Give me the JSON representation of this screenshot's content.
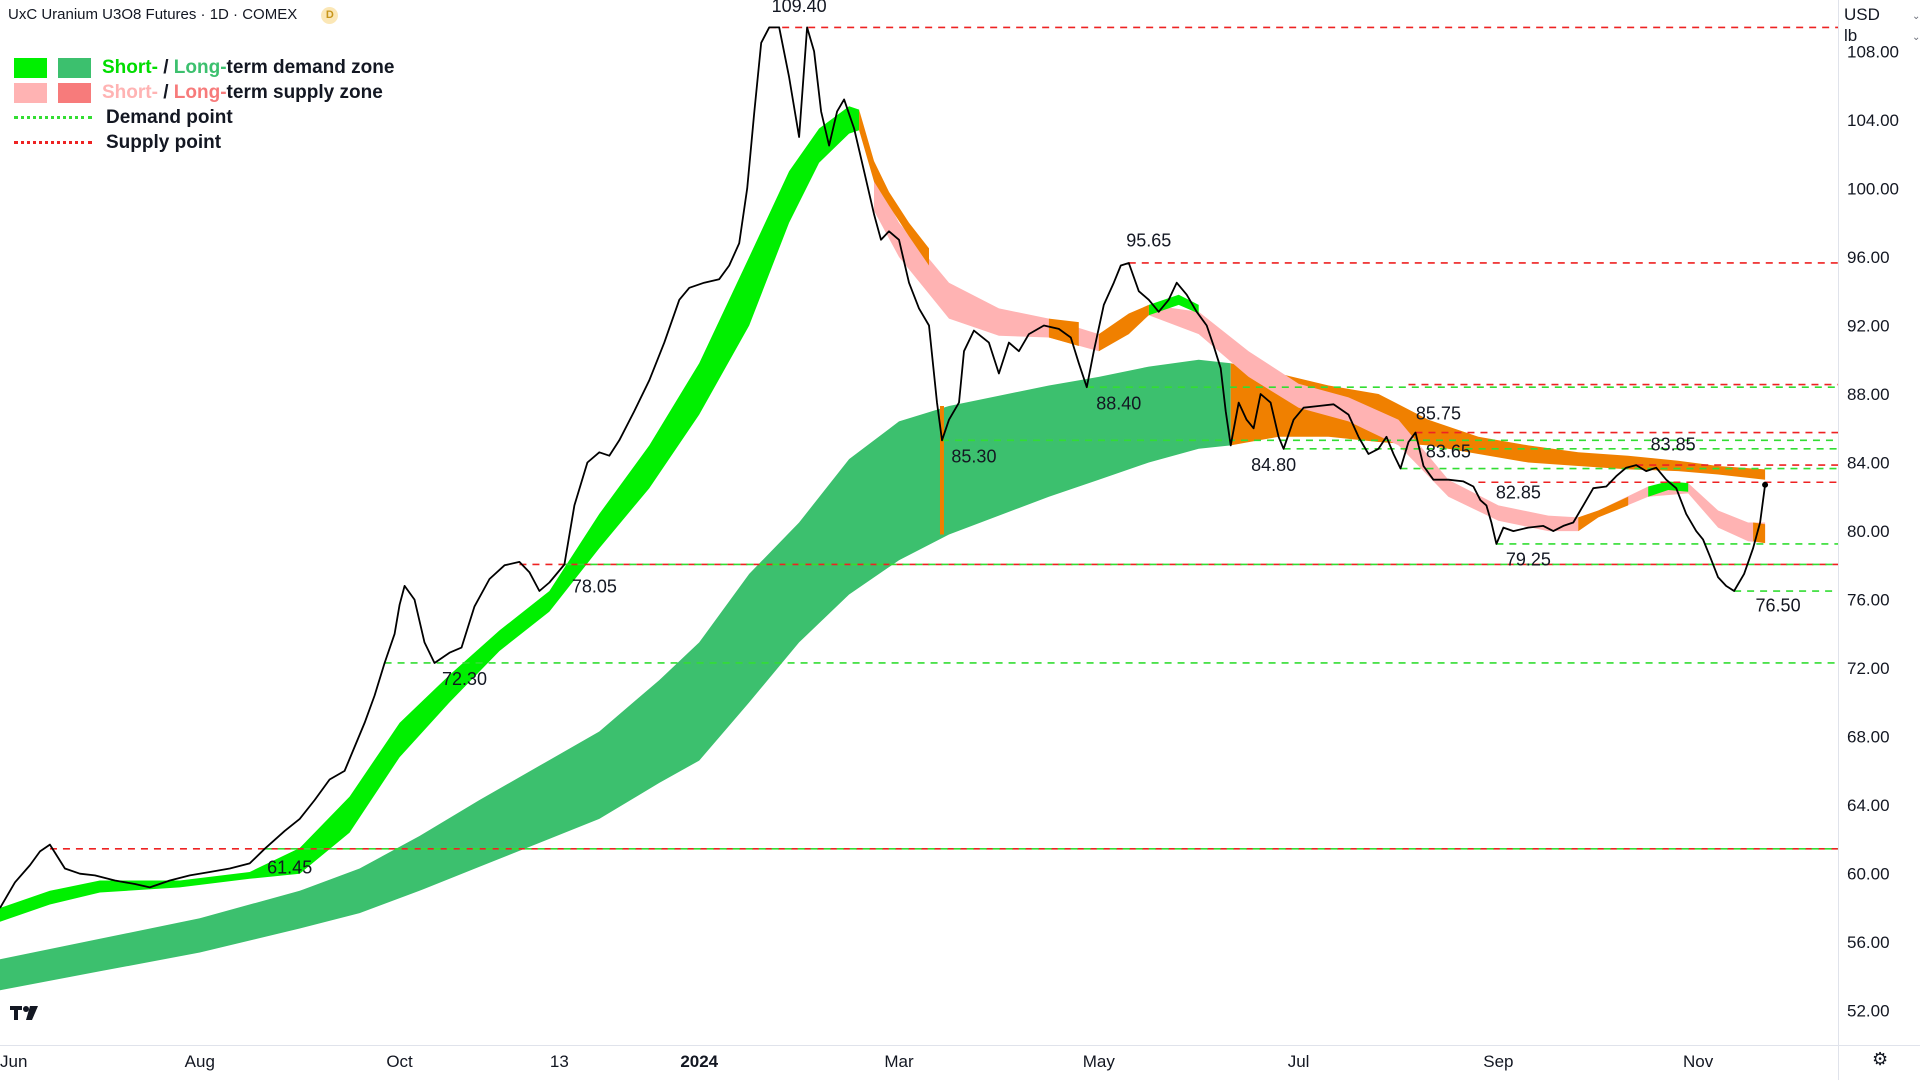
{
  "header": {
    "title": "UxC Uranium U3O8 Futures · 1D · COMEX",
    "badge": "D",
    "currency": "USD",
    "unit": "lb"
  },
  "legend": {
    "demand_zone": {
      "short": "Short-",
      "sep": " / ",
      "long": "Long-",
      "rest": "term demand zone"
    },
    "supply_zone": {
      "short": "Short-",
      "sep": " / ",
      "long": "Long-",
      "rest": "term supply zone"
    },
    "demand_point": "Demand point",
    "supply_point": "Supply point"
  },
  "colors": {
    "short_demand": "#00f000",
    "long_demand": "#3cc06e",
    "short_supply": "#ffb3b3",
    "long_supply": "#f77b7b",
    "overlap": "#f08000",
    "demand_point": "#33dd33",
    "supply_point": "#ee2222",
    "price_line": "#000000",
    "demand_text_short": "#00dd00",
    "demand_text_long": "#3cc06e",
    "supply_text_short": "#ffb3b3",
    "supply_text_long": "#f77b7b"
  },
  "icons": {
    "logo": "tradingview-logo-icon",
    "settings": "settings-icon"
  },
  "chart_data": {
    "type": "line",
    "title": "UxC Uranium U3O8 Futures",
    "interval": "1D",
    "exchange": "COMEX",
    "ylabel": "USD / lb",
    "ylim": [
      50.0,
      111.0
    ],
    "y_ticks": [
      "108.00",
      "104.00",
      "100.00",
      "96.00",
      "92.00",
      "88.00",
      "84.00",
      "80.00",
      "76.00",
      "72.00",
      "68.00",
      "64.00",
      "60.00",
      "56.00",
      "52.00"
    ],
    "x_ticks": [
      "Jun",
      "Aug",
      "Oct",
      "13",
      "2024",
      "Mar",
      "May",
      "Jul",
      "Sep",
      "Nov"
    ],
    "x_tick_months": [
      0,
      2,
      4,
      5.6,
      7,
      9,
      11,
      13,
      15,
      17
    ],
    "xlim": [
      0,
      18.4
    ],
    "price": [
      [
        0.0,
        58.0
      ],
      [
        0.15,
        59.5
      ],
      [
        0.3,
        60.5
      ],
      [
        0.4,
        61.3
      ],
      [
        0.5,
        61.7
      ],
      [
        0.65,
        60.3
      ],
      [
        0.8,
        60.0
      ],
      [
        0.95,
        59.9
      ],
      [
        1.15,
        59.6
      ],
      [
        1.35,
        59.4
      ],
      [
        1.5,
        59.2
      ],
      [
        1.7,
        59.6
      ],
      [
        1.9,
        59.9
      ],
      [
        2.1,
        60.1
      ],
      [
        2.3,
        60.3
      ],
      [
        2.5,
        60.6
      ],
      [
        2.65,
        61.45
      ],
      [
        2.85,
        62.5
      ],
      [
        3.0,
        63.2
      ],
      [
        3.15,
        64.3
      ],
      [
        3.3,
        65.5
      ],
      [
        3.45,
        66.0
      ],
      [
        3.55,
        67.4
      ],
      [
        3.65,
        68.8
      ],
      [
        3.75,
        70.4
      ],
      [
        3.85,
        72.3
      ],
      [
        3.95,
        74.0
      ],
      [
        4.0,
        75.7
      ],
      [
        4.05,
        76.8
      ],
      [
        4.15,
        76.0
      ],
      [
        4.25,
        73.5
      ],
      [
        4.35,
        72.3
      ],
      [
        4.5,
        72.9
      ],
      [
        4.62,
        73.2
      ],
      [
        4.75,
        75.6
      ],
      [
        4.9,
        77.2
      ],
      [
        5.05,
        78.0
      ],
      [
        5.2,
        78.2
      ],
      [
        5.3,
        77.6
      ],
      [
        5.4,
        76.5
      ],
      [
        5.5,
        77.0
      ],
      [
        5.65,
        78.05
      ],
      [
        5.75,
        81.5
      ],
      [
        5.88,
        84.0
      ],
      [
        6.0,
        84.6
      ],
      [
        6.1,
        84.4
      ],
      [
        6.2,
        85.3
      ],
      [
        6.35,
        87.0
      ],
      [
        6.5,
        88.8
      ],
      [
        6.65,
        91.0
      ],
      [
        6.8,
        93.5
      ],
      [
        6.9,
        94.2
      ],
      [
        7.05,
        94.5
      ],
      [
        7.2,
        94.7
      ],
      [
        7.3,
        95.5
      ],
      [
        7.4,
        96.8
      ],
      [
        7.48,
        100.0
      ],
      [
        7.55,
        104.4
      ],
      [
        7.62,
        108.5
      ],
      [
        7.7,
        109.4
      ],
      [
        7.8,
        109.4
      ],
      [
        7.9,
        106.5
      ],
      [
        8.0,
        103.0
      ],
      [
        8.08,
        109.4
      ],
      [
        8.15,
        108.0
      ],
      [
        8.22,
        104.5
      ],
      [
        8.3,
        102.5
      ],
      [
        8.38,
        104.5
      ],
      [
        8.45,
        105.2
      ],
      [
        8.55,
        103.5
      ],
      [
        8.65,
        101.0
      ],
      [
        8.75,
        98.5
      ],
      [
        8.82,
        97.0
      ],
      [
        8.9,
        97.5
      ],
      [
        9.0,
        97.0
      ],
      [
        9.1,
        94.5
      ],
      [
        9.2,
        93.0
      ],
      [
        9.3,
        92.0
      ],
      [
        9.38,
        87.5
      ],
      [
        9.43,
        85.3
      ],
      [
        9.5,
        86.5
      ],
      [
        9.6,
        87.5
      ],
      [
        9.65,
        90.5
      ],
      [
        9.75,
        91.7
      ],
      [
        9.9,
        91.0
      ],
      [
        10.0,
        89.2
      ],
      [
        10.1,
        91.0
      ],
      [
        10.2,
        90.5
      ],
      [
        10.3,
        91.5
      ],
      [
        10.45,
        92.0
      ],
      [
        10.6,
        91.8
      ],
      [
        10.72,
        91.3
      ],
      [
        10.8,
        89.8
      ],
      [
        10.88,
        88.4
      ],
      [
        10.95,
        90.5
      ],
      [
        11.05,
        93.2
      ],
      [
        11.15,
        94.5
      ],
      [
        11.22,
        95.5
      ],
      [
        11.3,
        95.65
      ],
      [
        11.4,
        94.0
      ],
      [
        11.5,
        93.5
      ],
      [
        11.6,
        92.8
      ],
      [
        11.7,
        93.5
      ],
      [
        11.78,
        94.5
      ],
      [
        11.88,
        93.8
      ],
      [
        11.98,
        92.8
      ],
      [
        12.08,
        92.0
      ],
      [
        12.15,
        90.8
      ],
      [
        12.22,
        89.5
      ],
      [
        12.27,
        87.0
      ],
      [
        12.32,
        85.0
      ],
      [
        12.4,
        87.5
      ],
      [
        12.48,
        86.5
      ],
      [
        12.55,
        86.0
      ],
      [
        12.62,
        88.0
      ],
      [
        12.72,
        87.5
      ],
      [
        12.8,
        85.5
      ],
      [
        12.85,
        84.8
      ],
      [
        12.95,
        86.5
      ],
      [
        13.05,
        87.2
      ],
      [
        13.2,
        87.3
      ],
      [
        13.35,
        87.4
      ],
      [
        13.5,
        86.8
      ],
      [
        13.6,
        85.5
      ],
      [
        13.7,
        84.5
      ],
      [
        13.8,
        84.8
      ],
      [
        13.88,
        85.5
      ],
      [
        13.95,
        84.5
      ],
      [
        14.02,
        83.65
      ],
      [
        14.1,
        85.2
      ],
      [
        14.17,
        85.75
      ],
      [
        14.25,
        83.8
      ],
      [
        14.35,
        83.0
      ],
      [
        14.5,
        83.0
      ],
      [
        14.65,
        82.9
      ],
      [
        14.75,
        82.6
      ],
      [
        14.82,
        81.8
      ],
      [
        14.88,
        81.5
      ],
      [
        14.93,
        80.5
      ],
      [
        14.98,
        79.25
      ],
      [
        15.05,
        80.2
      ],
      [
        15.15,
        80.0
      ],
      [
        15.3,
        80.2
      ],
      [
        15.45,
        80.3
      ],
      [
        15.55,
        80.0
      ],
      [
        15.65,
        80.3
      ],
      [
        15.75,
        80.5
      ],
      [
        15.85,
        81.5
      ],
      [
        15.95,
        82.5
      ],
      [
        16.08,
        82.6
      ],
      [
        16.18,
        83.2
      ],
      [
        16.28,
        83.7
      ],
      [
        16.38,
        83.85
      ],
      [
        16.48,
        83.5
      ],
      [
        16.58,
        83.7
      ],
      [
        16.68,
        83.0
      ],
      [
        16.78,
        82.5
      ],
      [
        16.88,
        81.0
      ],
      [
        16.98,
        80.0
      ],
      [
        17.05,
        79.5
      ],
      [
        17.12,
        78.5
      ],
      [
        17.2,
        77.3
      ],
      [
        17.28,
        76.8
      ],
      [
        17.36,
        76.5
      ],
      [
        17.46,
        77.5
      ],
      [
        17.55,
        79.0
      ],
      [
        17.62,
        80.5
      ],
      [
        17.67,
        82.7
      ]
    ],
    "long_demand_zone": [
      [
        0.0,
        55.0,
        53.2
      ],
      [
        1.0,
        56.2,
        54.3
      ],
      [
        2.0,
        57.4,
        55.4
      ],
      [
        3.0,
        59.0,
        56.8
      ],
      [
        3.6,
        60.3,
        57.7
      ],
      [
        4.2,
        62.2,
        59.0
      ],
      [
        4.8,
        64.3,
        60.4
      ],
      [
        5.4,
        66.3,
        61.8
      ],
      [
        6.0,
        68.3,
        63.2
      ],
      [
        6.6,
        71.3,
        65.3
      ],
      [
        7.0,
        73.5,
        66.6
      ],
      [
        7.5,
        77.5,
        70.0
      ],
      [
        8.0,
        80.5,
        73.5
      ],
      [
        8.5,
        84.2,
        76.3
      ],
      [
        9.0,
        86.4,
        78.3
      ],
      [
        9.5,
        87.3,
        79.8
      ],
      [
        10.0,
        87.9,
        80.9
      ],
      [
        10.5,
        88.5,
        82.0
      ],
      [
        11.0,
        89.0,
        83.0
      ],
      [
        11.5,
        89.6,
        84.0
      ],
      [
        12.0,
        90.0,
        84.8
      ],
      [
        12.32,
        89.8,
        85.0
      ]
    ],
    "short_demand_zone": [
      [
        0.0,
        58.0,
        57.2
      ],
      [
        0.5,
        59.0,
        58.2
      ],
      [
        1.0,
        59.6,
        58.9
      ],
      [
        1.8,
        59.6,
        59.2
      ],
      [
        2.5,
        60.1,
        59.7
      ],
      [
        3.0,
        61.5,
        60.0
      ],
      [
        3.5,
        64.5,
        62.4
      ],
      [
        4.0,
        68.8,
        66.8
      ],
      [
        4.5,
        71.6,
        70.0
      ],
      [
        5.0,
        74.2,
        73.0
      ],
      [
        5.5,
        76.5,
        75.3
      ],
      [
        6.0,
        81.0,
        79.0
      ],
      [
        6.5,
        85.0,
        82.5
      ],
      [
        7.0,
        89.8,
        86.8
      ],
      [
        7.5,
        96.0,
        92.0
      ],
      [
        7.9,
        101.0,
        98.0
      ],
      [
        8.2,
        103.5,
        101.5
      ],
      [
        8.5,
        104.8,
        103.2
      ],
      [
        8.6,
        104.6,
        103.4
      ]
    ],
    "overlap_zone_upper": [
      [
        12.32,
        89.8,
        85.0
      ],
      [
        12.8,
        89.2,
        85.5
      ],
      [
        13.3,
        88.5,
        85.5
      ],
      [
        13.8,
        88.0,
        85.2
      ],
      [
        14.3,
        86.5,
        85.0
      ],
      [
        14.8,
        85.5,
        84.5
      ],
      [
        15.3,
        85.0,
        84.0
      ],
      [
        15.8,
        84.6,
        83.8
      ],
      [
        16.3,
        84.4,
        83.6
      ],
      [
        16.8,
        84.1,
        83.5
      ],
      [
        17.2,
        83.8,
        83.3
      ],
      [
        17.67,
        83.6,
        83.0
      ]
    ],
    "short_supply_zone": [
      [
        8.75,
        100.8,
        98.7
      ],
      [
        9.0,
        98.0,
        96.0
      ],
      [
        9.5,
        94.5,
        92.4
      ],
      [
        10.0,
        93.0,
        91.4
      ],
      [
        10.5,
        92.4,
        91.3
      ],
      [
        11.0,
        91.5,
        90.5
      ],
      [
        11.5,
        93.2,
        92.6
      ],
      [
        12.0,
        92.8,
        91.5
      ],
      [
        12.5,
        90.5,
        89.0
      ],
      [
        13.0,
        88.6,
        87.2
      ],
      [
        13.5,
        87.8,
        86.4
      ],
      [
        14.0,
        86.5,
        85.0
      ],
      [
        14.5,
        83.0,
        82.0
      ],
      [
        15.0,
        81.5,
        80.6
      ],
      [
        15.5,
        80.9,
        80.0
      ],
      [
        15.8,
        80.8,
        80.0
      ],
      [
        16.0,
        81.2,
        80.8
      ],
      [
        16.5,
        82.6,
        82.0
      ],
      [
        16.9,
        82.8,
        82.2
      ],
      [
        17.2,
        81.2,
        80.2
      ],
      [
        17.5,
        80.5,
        79.4
      ],
      [
        17.67,
        80.5,
        79.3
      ]
    ],
    "short_overlap_segments": [
      [
        [
          8.6,
          104.6,
          103.4
        ],
        [
          8.75,
          101.6,
          100.4
        ],
        [
          8.9,
          99.8,
          99.0
        ],
        [
          9.1,
          98.0,
          97.2
        ],
        [
          9.3,
          96.5,
          95.5
        ]
      ],
      [
        [
          10.5,
          92.4,
          91.3
        ],
        [
          10.8,
          92.2,
          90.8
        ]
      ],
      [
        [
          11.0,
          91.5,
          90.5
        ],
        [
          11.3,
          92.7,
          91.5
        ],
        [
          11.5,
          93.2,
          92.6
        ]
      ],
      [
        [
          15.8,
          80.8,
          80.0
        ],
        [
          16.0,
          81.2,
          80.8
        ],
        [
          16.3,
          82.0,
          81.5
        ]
      ],
      [
        [
          17.55,
          80.5,
          79.4
        ],
        [
          17.67,
          80.4,
          79.3
        ]
      ]
    ],
    "short_demand_small": [
      [
        11.5,
        93.2,
        92.6
      ],
      [
        11.8,
        93.8,
        93.2
      ],
      [
        12.0,
        93.2,
        92.7
      ]
    ],
    "short_demand_small2": [
      [
        16.5,
        82.6,
        82.0
      ],
      [
        16.7,
        82.9,
        82.4
      ],
      [
        16.9,
        82.8,
        82.3
      ]
    ],
    "supply_points": [
      {
        "value": 109.4,
        "x_start": 7.7,
        "label": "109.40",
        "label_x": 8.0,
        "label_y": 110.3
      },
      {
        "value": 95.65,
        "x_start": 11.3,
        "label": "95.65",
        "label_x": 11.5,
        "label_y": 96.6
      },
      {
        "value": 88.55,
        "x_start": 14.1,
        "label": "",
        "label_x": 0,
        "label_y": 0
      },
      {
        "value": 85.75,
        "x_start": 14.17,
        "label": "85.75",
        "label_x": 14.4,
        "label_y": 86.5
      },
      {
        "value": 83.85,
        "x_start": 16.38,
        "label": "83.85",
        "label_x": 16.75,
        "label_y": 84.7
      },
      {
        "value": 82.85,
        "x_start": 14.8,
        "label": "82.85",
        "label_x": 15.2,
        "label_y": 81.9
      },
      {
        "value": 78.05,
        "x_start": 5.2,
        "label": "",
        "label_x": 0,
        "label_y": 0
      },
      {
        "value": 61.45,
        "x_start": 0.5,
        "label": "",
        "label_x": 0,
        "label_y": 0
      }
    ],
    "demand_points": [
      {
        "value": 88.4,
        "x_start": 10.88,
        "label": "88.40",
        "label_x": 11.2,
        "label_y": 87.1
      },
      {
        "value": 85.3,
        "x_start": 9.43,
        "label": "85.30",
        "label_x": 9.75,
        "label_y": 84.0
      },
      {
        "value": 84.8,
        "x_start": 12.85,
        "label": "84.80",
        "label_x": 12.75,
        "label_y": 83.5
      },
      {
        "value": 83.65,
        "x_start": 14.02,
        "label": "83.65",
        "label_x": 14.5,
        "label_y": 84.3
      },
      {
        "value": 79.25,
        "x_start": 14.98,
        "label": "79.25",
        "label_x": 15.3,
        "label_y": 78.0
      },
      {
        "value": 78.05,
        "x_start": 5.65,
        "label": "78.05",
        "label_x": 5.95,
        "label_y": 76.4
      },
      {
        "value": 76.5,
        "x_start": 17.36,
        "label": "76.50",
        "label_x": 17.8,
        "label_y": 75.3
      },
      {
        "value": 72.3,
        "x_start": 3.85,
        "label": "72.30",
        "label_x": 4.65,
        "label_y": 71.0
      },
      {
        "value": 61.45,
        "x_start": 2.65,
        "label": "61.45",
        "label_x": 2.9,
        "label_y": 60.0
      }
    ],
    "spike_markers": [
      {
        "x": 9.43,
        "from": 79.8,
        "to": 87.3
      }
    ]
  }
}
